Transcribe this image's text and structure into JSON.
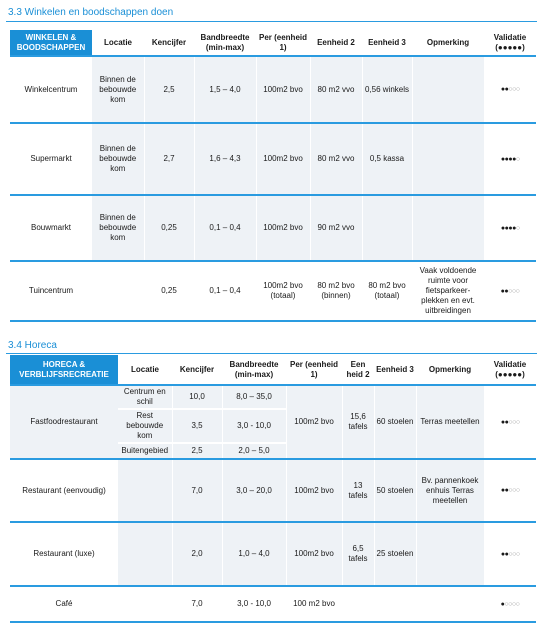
{
  "section1": {
    "title": "3.3  Winkelen en boodschappen doen",
    "headers": {
      "category": "WINKELEN & BOODSCHAPPEN",
      "locatie": "Locatie",
      "kencijfer": "Kencijfer",
      "bandbreedte": "Bandbreedte (min-max)",
      "per": "Per (eenheid 1)",
      "eenheid2": "Eenheid 2",
      "eenheid3": "Eenheid 3",
      "opmerking": "Opmerking",
      "validatie": "Validatie (●●●●●)"
    },
    "rows": [
      {
        "name": "Winkelcentrum",
        "locatie": "Binnen de bebouwde kom",
        "kencijfer": "2,5",
        "bandbreedte": "1,5 – 4,0",
        "per": "100m2 bvo",
        "eenheid2": "80 m2 vvo",
        "eenheid3": "0,56 winkels",
        "opmerking": "",
        "validatie": 2
      },
      {
        "name": "Supermarkt",
        "locatie": "Binnen de bebouwde kom",
        "kencijfer": "2,7",
        "bandbreedte": "1,6 – 4,3",
        "per": "100m2 bvo",
        "eenheid2": "80 m2 vvo",
        "eenheid3": "0,5 kassa",
        "opmerking": "",
        "validatie": 4
      },
      {
        "name": "Bouwmarkt",
        "locatie": "Binnen de bebouwde kom",
        "kencijfer": "0,25",
        "bandbreedte": "0,1 – 0,4",
        "per": "100m2 bvo",
        "eenheid2": "90 m2 vvo",
        "eenheid3": "",
        "opmerking": "",
        "validatie": 4
      },
      {
        "name": "Tuincentrum",
        "locatie": "",
        "kencijfer": "0,25",
        "bandbreedte": "0,1 – 0,4",
        "per": "100m2 bvo (totaal)",
        "eenheid2": "80 m2 bvo (binnen)",
        "eenheid3": "80 m2 bvo (totaal)",
        "opmerking": "Vaak voldoende ruimte voor fietsparkeer-plekken en evt. uitbreidingen",
        "validatie": 2
      }
    ]
  },
  "section2": {
    "title": "3.4  Horeca",
    "headers": {
      "category": "HORECA & VERBLIJFSRECREATIE",
      "locatie": "Locatie",
      "kencijfer": "Kencijfer",
      "bandbreedte": "Bandbreedte (min-max)",
      "per": "Per (eenheid 1)",
      "eenheid2": "Een heid 2",
      "eenheid3": "Eenheid 3",
      "opmerking": "Opmerking",
      "validatie": "Validatie (●●●●●)"
    },
    "fastfood": {
      "name": "Fastfoodrestaurant",
      "sub": [
        {
          "locatie": "Centrum en schil",
          "kencijfer": "10,0",
          "bandbreedte": "8,0 – 35,0"
        },
        {
          "locatie": "Rest bebouwde kom",
          "kencijfer": "3,5",
          "bandbreedte": "3,0 - 10,0"
        },
        {
          "locatie": "Buitengebied",
          "kencijfer": "2,5",
          "bandbreedte": "2,0 – 5,0"
        }
      ],
      "per": "100m2 bvo",
      "eenheid2": "15,6 tafels",
      "eenheid3": "60 stoelen",
      "opmerking": "Terras meetellen",
      "validatie": 2
    },
    "rows": [
      {
        "name": "Restaurant (eenvoudig)",
        "locatie": "",
        "kencijfer": "7,0",
        "bandbreedte": "3,0 – 20,0",
        "per": "100m2 bvo",
        "eenheid2": "13 tafels",
        "eenheid3": "50 stoelen",
        "opmerking": "Bv. pannenkoek enhuis Terras meetellen",
        "validatie": 2
      },
      {
        "name": "Restaurant (luxe)",
        "locatie": "",
        "kencijfer": "2,0",
        "bandbreedte": "1,0 – 4,0",
        "per": "100m2 bvo",
        "eenheid2": "6,5 tafels",
        "eenheid3": "25 stoelen",
        "opmerking": "",
        "validatie": 2
      },
      {
        "name": "Café",
        "locatie": "",
        "kencijfer": "7,0",
        "bandbreedte": "3,0 - 10,0",
        "per": "100 m2 bvo",
        "eenheid2": "",
        "eenheid3": "",
        "opmerking": "",
        "validatie": 1
      }
    ]
  },
  "colors": {
    "accent": "#1a8fd6",
    "rule": "#2a9be0",
    "shade": "#eef2f6"
  }
}
